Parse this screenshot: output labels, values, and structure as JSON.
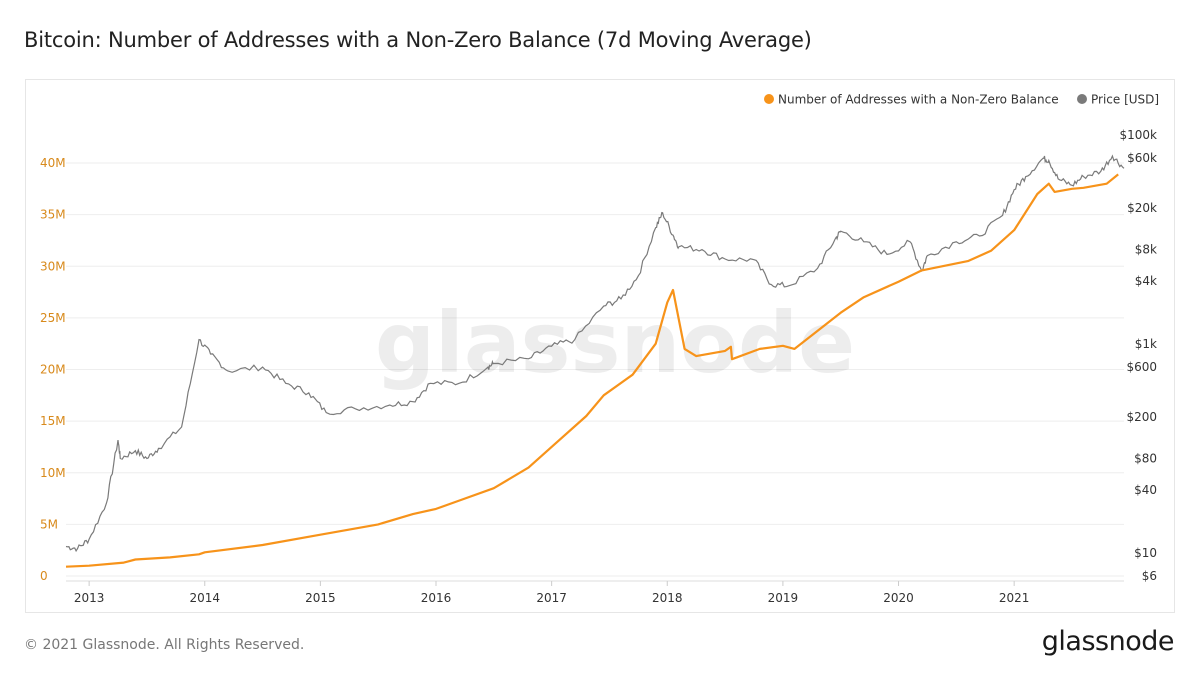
{
  "title": "Bitcoin: Number of Addresses with a Non-Zero Balance (7d Moving Average)",
  "footer": {
    "copyright": "© 2021 Glassnode. All Rights Reserved.",
    "logo": "glassnode"
  },
  "watermark": "glassnode",
  "colors": {
    "addresses": "#f7931a",
    "price": "#7a7a7a",
    "grid": "#eeeeee",
    "left_tick": "#d88a1c",
    "right_tick": "#333333"
  },
  "chart_data": {
    "type": "line",
    "title": "Bitcoin: Number of Addresses with a Non-Zero Balance (7d Moving Average)",
    "legend": [
      {
        "label": "Number of Addresses with a Non-Zero Balance",
        "color": "#f7931a"
      },
      {
        "label": "Price [USD]",
        "color": "#7a7a7a"
      }
    ],
    "legend_position": "top-right",
    "x_ticks": [
      "2013",
      "2014",
      "2015",
      "2016",
      "2017",
      "2018",
      "2019",
      "2020",
      "2021"
    ],
    "x_range": [
      2012.8,
      2021.95
    ],
    "y_left": {
      "ticks": [
        0,
        5,
        10,
        15,
        20,
        25,
        30,
        35,
        40
      ],
      "tick_labels": [
        "0",
        "5M",
        "10M",
        "15M",
        "20M",
        "25M",
        "30M",
        "35M",
        "40M"
      ],
      "range": [
        0,
        40
      ],
      "unit": "millions"
    },
    "y_right": {
      "scale": "log",
      "ticks": [
        6,
        10,
        40,
        80,
        200,
        600,
        1000,
        4000,
        8000,
        20000,
        60000,
        100000
      ],
      "tick_labels": [
        "$6",
        "$10",
        "$40",
        "$80",
        "$200",
        "$600",
        "$1k",
        "$4k",
        "$8k",
        "$20k",
        "$60k",
        "$100k"
      ],
      "range": [
        6,
        100000
      ]
    },
    "series": [
      {
        "name": "Number of Addresses with a Non-Zero Balance",
        "axis": "left",
        "unit": "millions",
        "points": [
          [
            2012.8,
            0.9
          ],
          [
            2013.0,
            1.0
          ],
          [
            2013.3,
            1.3
          ],
          [
            2013.4,
            1.6
          ],
          [
            2013.7,
            1.8
          ],
          [
            2013.95,
            2.1
          ],
          [
            2014.0,
            2.3
          ],
          [
            2014.5,
            3.0
          ],
          [
            2015.0,
            4.0
          ],
          [
            2015.5,
            5.0
          ],
          [
            2015.8,
            6.0
          ],
          [
            2016.0,
            6.5
          ],
          [
            2016.2,
            7.3
          ],
          [
            2016.5,
            8.5
          ],
          [
            2016.8,
            10.5
          ],
          [
            2017.0,
            12.5
          ],
          [
            2017.3,
            15.5
          ],
          [
            2017.45,
            17.5
          ],
          [
            2017.7,
            19.5
          ],
          [
            2017.9,
            22.5
          ],
          [
            2018.0,
            26.5
          ],
          [
            2018.05,
            27.7
          ],
          [
            2018.15,
            22.0
          ],
          [
            2018.25,
            21.3
          ],
          [
            2018.5,
            21.8
          ],
          [
            2018.55,
            22.2
          ],
          [
            2018.56,
            21.0
          ],
          [
            2018.8,
            22.0
          ],
          [
            2019.0,
            22.3
          ],
          [
            2019.1,
            22.0
          ],
          [
            2019.5,
            25.5
          ],
          [
            2019.7,
            27.0
          ],
          [
            2020.0,
            28.5
          ],
          [
            2020.2,
            29.6
          ],
          [
            2020.6,
            30.5
          ],
          [
            2020.8,
            31.5
          ],
          [
            2021.0,
            33.5
          ],
          [
            2021.2,
            37.0
          ],
          [
            2021.3,
            38.0
          ],
          [
            2021.35,
            37.2
          ],
          [
            2021.5,
            37.5
          ],
          [
            2021.6,
            37.6
          ],
          [
            2021.8,
            38.0
          ],
          [
            2021.9,
            38.9
          ]
        ]
      },
      {
        "name": "Price [USD]",
        "axis": "right",
        "unit": "USD",
        "points": [
          [
            2012.8,
            11.5
          ],
          [
            2012.9,
            11
          ],
          [
            2013.0,
            13.5
          ],
          [
            2013.15,
            30
          ],
          [
            2013.25,
            120
          ],
          [
            2013.27,
            80
          ],
          [
            2013.4,
            95
          ],
          [
            2013.5,
            80
          ],
          [
            2013.6,
            100
          ],
          [
            2013.8,
            160
          ],
          [
            2013.95,
            1100
          ],
          [
            2014.05,
            800
          ],
          [
            2014.2,
            550
          ],
          [
            2014.5,
            600
          ],
          [
            2014.7,
            420
          ],
          [
            2014.9,
            340
          ],
          [
            2015.05,
            220
          ],
          [
            2015.3,
            240
          ],
          [
            2015.6,
            260
          ],
          [
            2015.8,
            280
          ],
          [
            2015.95,
            420
          ],
          [
            2016.2,
            420
          ],
          [
            2016.45,
            600
          ],
          [
            2016.5,
            650
          ],
          [
            2016.8,
            720
          ],
          [
            2017.0,
            950
          ],
          [
            2017.2,
            1100
          ],
          [
            2017.45,
            2300
          ],
          [
            2017.6,
            2700
          ],
          [
            2017.75,
            4500
          ],
          [
            2017.9,
            13000
          ],
          [
            2017.96,
            18000
          ],
          [
            2018.05,
            11000
          ],
          [
            2018.1,
            8500
          ],
          [
            2018.3,
            8000
          ],
          [
            2018.5,
            6500
          ],
          [
            2018.75,
            6400
          ],
          [
            2018.9,
            3700
          ],
          [
            2019.05,
            3600
          ],
          [
            2019.3,
            5300
          ],
          [
            2019.45,
            10000
          ],
          [
            2019.5,
            12000
          ],
          [
            2019.7,
            9500
          ],
          [
            2019.9,
            7200
          ],
          [
            2020.1,
            9500
          ],
          [
            2020.2,
            5000
          ],
          [
            2020.25,
            7000
          ],
          [
            2020.5,
            9500
          ],
          [
            2020.7,
            10800
          ],
          [
            2020.9,
            17000
          ],
          [
            2021.0,
            30000
          ],
          [
            2021.1,
            40000
          ],
          [
            2021.25,
            60000
          ],
          [
            2021.3,
            57000
          ],
          [
            2021.38,
            38000
          ],
          [
            2021.5,
            33000
          ],
          [
            2021.6,
            40000
          ],
          [
            2021.75,
            45000
          ],
          [
            2021.85,
            63000
          ],
          [
            2021.95,
            48000
          ]
        ]
      }
    ]
  }
}
